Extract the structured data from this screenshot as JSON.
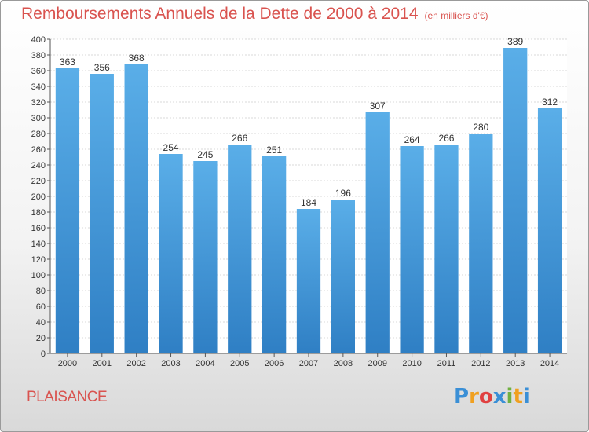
{
  "chart_data": {
    "type": "bar",
    "title": "Remboursements Annuels de la Dette de 2000 à 2014",
    "subtitle": "(en milliers d'€)",
    "categories": [
      "2000",
      "2001",
      "2002",
      "2003",
      "2004",
      "2005",
      "2006",
      "2007",
      "2008",
      "2009",
      "2010",
      "2011",
      "2012",
      "2013",
      "2014"
    ],
    "values": [
      363,
      356,
      368,
      254,
      245,
      266,
      251,
      184,
      196,
      307,
      264,
      266,
      280,
      389,
      312
    ],
    "ylim": [
      0,
      400
    ],
    "ytick_step": 20,
    "grid": true,
    "xlabel": "",
    "ylabel": "",
    "bar_color_top": "#5aaee8",
    "bar_color_bottom": "#2f7fc4"
  },
  "commune": "PLAISANCE",
  "logo": {
    "letters": [
      "P",
      "r",
      "o",
      "x",
      "i",
      "t",
      "i"
    ],
    "colors": [
      "#3a8fd6",
      "#f0a020",
      "#e04040",
      "#3a8fd6",
      "#70b040",
      "#f0a020",
      "#3a8fd6"
    ]
  }
}
